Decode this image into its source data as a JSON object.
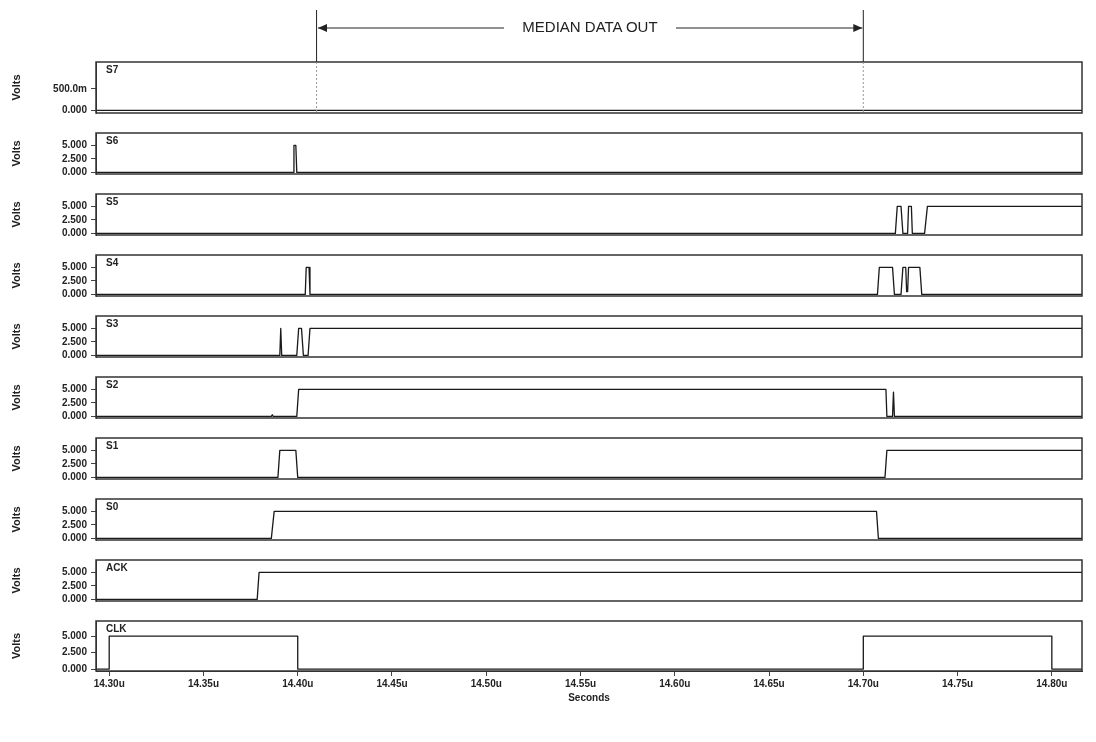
{
  "chart_data": [
    {
      "type": "line",
      "ylabel": "Volts",
      "xlim": [
        14.293,
        14.816
      ],
      "ylim": [
        -60,
        1120
      ],
      "yticks": [
        {
          "value": 0,
          "label": "0.000"
        },
        {
          "value": 500,
          "label": "500.0m"
        }
      ],
      "tick_labels": "y",
      "ref_lines": [
        {
          "axis": "x",
          "value": 14.41
        },
        {
          "axis": "x",
          "value": 14.7
        }
      ],
      "annotations": [
        "MEDIAN DATA OUT"
      ],
      "series": [
        {
          "name": "S7",
          "color": "#1a1a1a",
          "x": [
            14.293,
            14.816
          ],
          "values": [
            0,
            0
          ]
        }
      ]
    },
    {
      "type": "line",
      "ylabel": "Volts",
      "xlim": [
        14.293,
        14.816
      ],
      "ylim": [
        -0.3,
        7.3
      ],
      "yticks": [
        {
          "value": 0,
          "label": "0.000"
        },
        {
          "value": 2.5,
          "label": "2.500"
        },
        {
          "value": 5,
          "label": "5.000"
        }
      ],
      "tick_labels": "y",
      "series": [
        {
          "name": "S6",
          "color": "#1a1a1a",
          "x": [
            14.293,
            14.3975,
            14.398,
            14.399,
            14.3995,
            14.816
          ],
          "values": [
            0,
            0,
            5,
            5,
            0,
            0
          ]
        }
      ]
    },
    {
      "type": "line",
      "ylabel": "Volts",
      "xlim": [
        14.293,
        14.816
      ],
      "ylim": [
        -0.3,
        7.3
      ],
      "yticks": [
        {
          "value": 0,
          "label": "0.000"
        },
        {
          "value": 2.5,
          "label": "2.500"
        },
        {
          "value": 5,
          "label": "5.000"
        }
      ],
      "tick_labels": "y",
      "series": [
        {
          "name": "S5",
          "color": "#1a1a1a",
          "x": [
            14.293,
            14.717,
            14.718,
            14.72,
            14.721,
            14.7235,
            14.724,
            14.7255,
            14.726,
            14.7325,
            14.734,
            14.816
          ],
          "values": [
            0,
            0,
            5,
            5,
            0,
            0,
            5,
            5,
            0,
            0,
            5,
            5
          ]
        }
      ]
    },
    {
      "type": "line",
      "ylabel": "Volts",
      "xlim": [
        14.293,
        14.816
      ],
      "ylim": [
        -0.3,
        7.3
      ],
      "yticks": [
        {
          "value": 0,
          "label": "0.000"
        },
        {
          "value": 2.5,
          "label": "2.500"
        },
        {
          "value": 5,
          "label": "5.000"
        }
      ],
      "tick_labels": "y",
      "series": [
        {
          "name": "S4",
          "color": "#1a1a1a",
          "x": [
            14.293,
            14.404,
            14.4045,
            14.406,
            14.4065,
            14.7075,
            14.7085,
            14.7155,
            14.7165,
            14.72,
            14.721,
            14.7225,
            14.723,
            14.7235,
            14.724,
            14.73,
            14.731,
            14.816
          ],
          "values": [
            0,
            0,
            5,
            5,
            0,
            0,
            5,
            5,
            0,
            0,
            5,
            5,
            0.5,
            0.5,
            5,
            5,
            0,
            0
          ]
        }
      ]
    },
    {
      "type": "line",
      "ylabel": "Volts",
      "xlim": [
        14.293,
        14.816
      ],
      "ylim": [
        -0.3,
        7.3
      ],
      "yticks": [
        {
          "value": 0,
          "label": "0.000"
        },
        {
          "value": 2.5,
          "label": "2.500"
        },
        {
          "value": 5,
          "label": "5.000"
        }
      ],
      "tick_labels": "y",
      "series": [
        {
          "name": "S3",
          "color": "#1a1a1a",
          "x": [
            14.293,
            14.3905,
            14.391,
            14.3915,
            14.3995,
            14.4005,
            14.402,
            14.403,
            14.4055,
            14.4065,
            14.816
          ],
          "values": [
            0,
            0,
            5,
            0,
            0,
            5,
            5,
            0,
            0,
            5,
            5
          ]
        }
      ]
    },
    {
      "type": "line",
      "ylabel": "Volts",
      "xlim": [
        14.293,
        14.816
      ],
      "ylim": [
        -0.3,
        7.3
      ],
      "yticks": [
        {
          "value": 0,
          "label": "0.000"
        },
        {
          "value": 2.5,
          "label": "2.500"
        },
        {
          "value": 5,
          "label": "5.000"
        }
      ],
      "tick_labels": "y",
      "series": [
        {
          "name": "S2",
          "color": "#1a1a1a",
          "x": [
            14.293,
            14.386,
            14.3865,
            14.387,
            14.3995,
            14.4005,
            14.712,
            14.7125,
            14.7155,
            14.716,
            14.7165,
            14.816
          ],
          "values": [
            0,
            0,
            0.3,
            0,
            0,
            5,
            5,
            0,
            0,
            4.5,
            0,
            0
          ]
        }
      ]
    },
    {
      "type": "line",
      "ylabel": "Volts",
      "xlim": [
        14.293,
        14.816
      ],
      "ylim": [
        -0.3,
        7.3
      ],
      "yticks": [
        {
          "value": 0,
          "label": "0.000"
        },
        {
          "value": 2.5,
          "label": "2.500"
        },
        {
          "value": 5,
          "label": "5.000"
        }
      ],
      "tick_labels": "y",
      "series": [
        {
          "name": "S1",
          "color": "#1a1a1a",
          "x": [
            14.293,
            14.3895,
            14.3905,
            14.399,
            14.4,
            14.7115,
            14.7125,
            14.816
          ],
          "values": [
            0,
            0,
            5,
            5,
            0,
            0,
            5,
            5
          ]
        }
      ]
    },
    {
      "type": "line",
      "ylabel": "Volts",
      "xlim": [
        14.293,
        14.816
      ],
      "ylim": [
        -0.3,
        7.3
      ],
      "yticks": [
        {
          "value": 0,
          "label": "0.000"
        },
        {
          "value": 2.5,
          "label": "2.500"
        },
        {
          "value": 5,
          "label": "5.000"
        }
      ],
      "tick_labels": "y",
      "series": [
        {
          "name": "S0",
          "color": "#1a1a1a",
          "x": [
            14.293,
            14.386,
            14.3875,
            14.707,
            14.708,
            14.816
          ],
          "values": [
            0,
            0,
            5,
            5,
            0,
            0
          ]
        }
      ]
    },
    {
      "type": "line",
      "ylabel": "Volts",
      "xlim": [
        14.293,
        14.816
      ],
      "ylim": [
        -0.3,
        7.3
      ],
      "yticks": [
        {
          "value": 0,
          "label": "0.000"
        },
        {
          "value": 2.5,
          "label": "2.500"
        },
        {
          "value": 5,
          "label": "5.000"
        }
      ],
      "tick_labels": "y",
      "series": [
        {
          "name": "ACK",
          "color": "#1a1a1a",
          "x": [
            14.293,
            14.3785,
            14.3795,
            14.816
          ],
          "values": [
            0,
            0,
            5,
            5
          ]
        }
      ]
    },
    {
      "type": "line",
      "ylabel": "Volts",
      "xlabel": "Seconds",
      "xlim": [
        14.293,
        14.816
      ],
      "ylim": [
        -0.3,
        7.3
      ],
      "xticks": [
        {
          "value": 14.3,
          "label": "14.30u"
        },
        {
          "value": 14.35,
          "label": "14.35u"
        },
        {
          "value": 14.4,
          "label": "14.40u"
        },
        {
          "value": 14.45,
          "label": "14.45u"
        },
        {
          "value": 14.5,
          "label": "14.50u"
        },
        {
          "value": 14.55,
          "label": "14.55u"
        },
        {
          "value": 14.6,
          "label": "14.60u"
        },
        {
          "value": 14.65,
          "label": "14.65u"
        },
        {
          "value": 14.7,
          "label": "14.70u"
        },
        {
          "value": 14.75,
          "label": "14.75u"
        },
        {
          "value": 14.8,
          "label": "14.80u"
        }
      ],
      "yticks": [
        {
          "value": 0,
          "label": "0.000"
        },
        {
          "value": 2.5,
          "label": "2.500"
        },
        {
          "value": 5,
          "label": "5.000"
        }
      ],
      "series": [
        {
          "name": "CLK",
          "color": "#1a1a1a",
          "x": [
            14.293,
            14.3,
            14.3,
            14.4,
            14.4,
            14.7,
            14.7,
            14.8,
            14.8,
            14.816
          ],
          "values": [
            0,
            0,
            5,
            5,
            0,
            0,
            5,
            5,
            0,
            0
          ]
        }
      ]
    }
  ]
}
